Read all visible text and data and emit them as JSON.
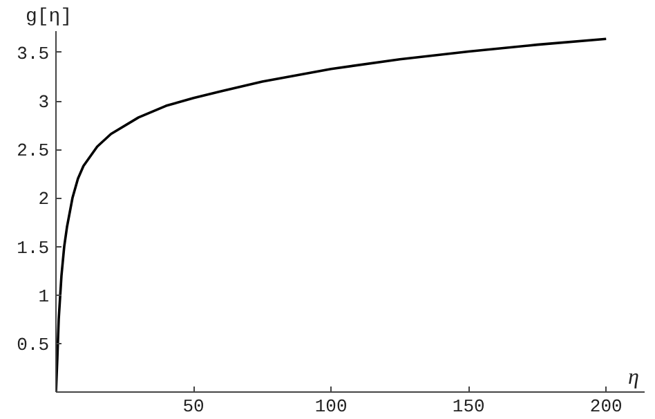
{
  "chart_data": {
    "type": "line",
    "xlabel": "η",
    "ylabel": "g[η]",
    "x": [
      0,
      0.5,
      1,
      2,
      3,
      4,
      6,
      8,
      10,
      15,
      20,
      30,
      40,
      50,
      60,
      75,
      100,
      125,
      150,
      175,
      200
    ],
    "series": [
      {
        "color": "#000000",
        "values": [
          0,
          0.35,
          0.75,
          1.2,
          1.5,
          1.7,
          2.0,
          2.2,
          2.33,
          2.53,
          2.66,
          2.83,
          2.95,
          3.03,
          3.1,
          3.2,
          3.33,
          3.43,
          3.51,
          3.58,
          3.64
        ]
      }
    ],
    "xlim": [
      0,
      214
    ],
    "ylim": [
      0,
      3.72
    ],
    "xticks": [
      50,
      100,
      150,
      200
    ],
    "yticks": [
      0.5,
      1,
      1.5,
      2,
      2.5,
      3,
      3.5
    ],
    "grid": false,
    "marker": "none",
    "line_style": "solid"
  }
}
